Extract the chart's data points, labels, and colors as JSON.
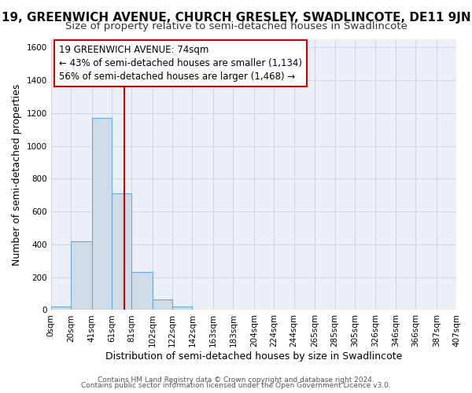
{
  "title": "19, GREENWICH AVENUE, CHURCH GRESLEY, SWADLINCOTE, DE11 9JN",
  "subtitle": "Size of property relative to semi-detached houses in Swadlincote",
  "xlabel": "Distribution of semi-detached houses by size in Swadlincote",
  "ylabel": "Number of semi-detached properties",
  "footer1": "Contains HM Land Registry data © Crown copyright and database right 2024.",
  "footer2": "Contains public sector information licensed under the Open Government Licence v3.0.",
  "property_size": 74,
  "property_label": "19 GREENWICH AVENUE: 74sqm",
  "pct_smaller": 43,
  "count_smaller": 1134,
  "pct_larger": 56,
  "count_larger": 1468,
  "bin_edges": [
    0,
    20,
    41,
    61,
    81,
    102,
    122,
    142,
    163,
    183,
    204,
    224,
    244,
    265,
    285,
    305,
    326,
    346,
    366,
    387,
    407
  ],
  "bin_labels": [
    "0sqm",
    "20sqm",
    "41sqm",
    "61sqm",
    "81sqm",
    "102sqm",
    "122sqm",
    "142sqm",
    "163sqm",
    "183sqm",
    "204sqm",
    "224sqm",
    "244sqm",
    "265sqm",
    "285sqm",
    "305sqm",
    "326sqm",
    "346sqm",
    "366sqm",
    "387sqm",
    "407sqm"
  ],
  "bar_heights": [
    20,
    420,
    1170,
    710,
    230,
    65,
    20,
    0,
    0,
    0,
    0,
    0,
    0,
    0,
    0,
    0,
    0,
    0,
    0,
    0
  ],
  "bar_color": "#cfdce8",
  "bar_edge_color": "#6aaad4",
  "vline_x": 74,
  "vline_color": "#cc0000",
  "box_facecolor": "#ffffff",
  "box_edge_color": "#cc0000",
  "ylim": [
    0,
    1650
  ],
  "yticks": [
    0,
    200,
    400,
    600,
    800,
    1000,
    1200,
    1400,
    1600
  ],
  "grid_color": "#d0d8e8",
  "plot_bg_color": "#eaf0f6",
  "fig_bg_color": "#ffffff",
  "title_fontsize": 11,
  "subtitle_fontsize": 9.5,
  "axis_label_fontsize": 9,
  "tick_fontsize": 7.5,
  "ann_fontsize": 8.5,
  "footer_fontsize": 6.5
}
